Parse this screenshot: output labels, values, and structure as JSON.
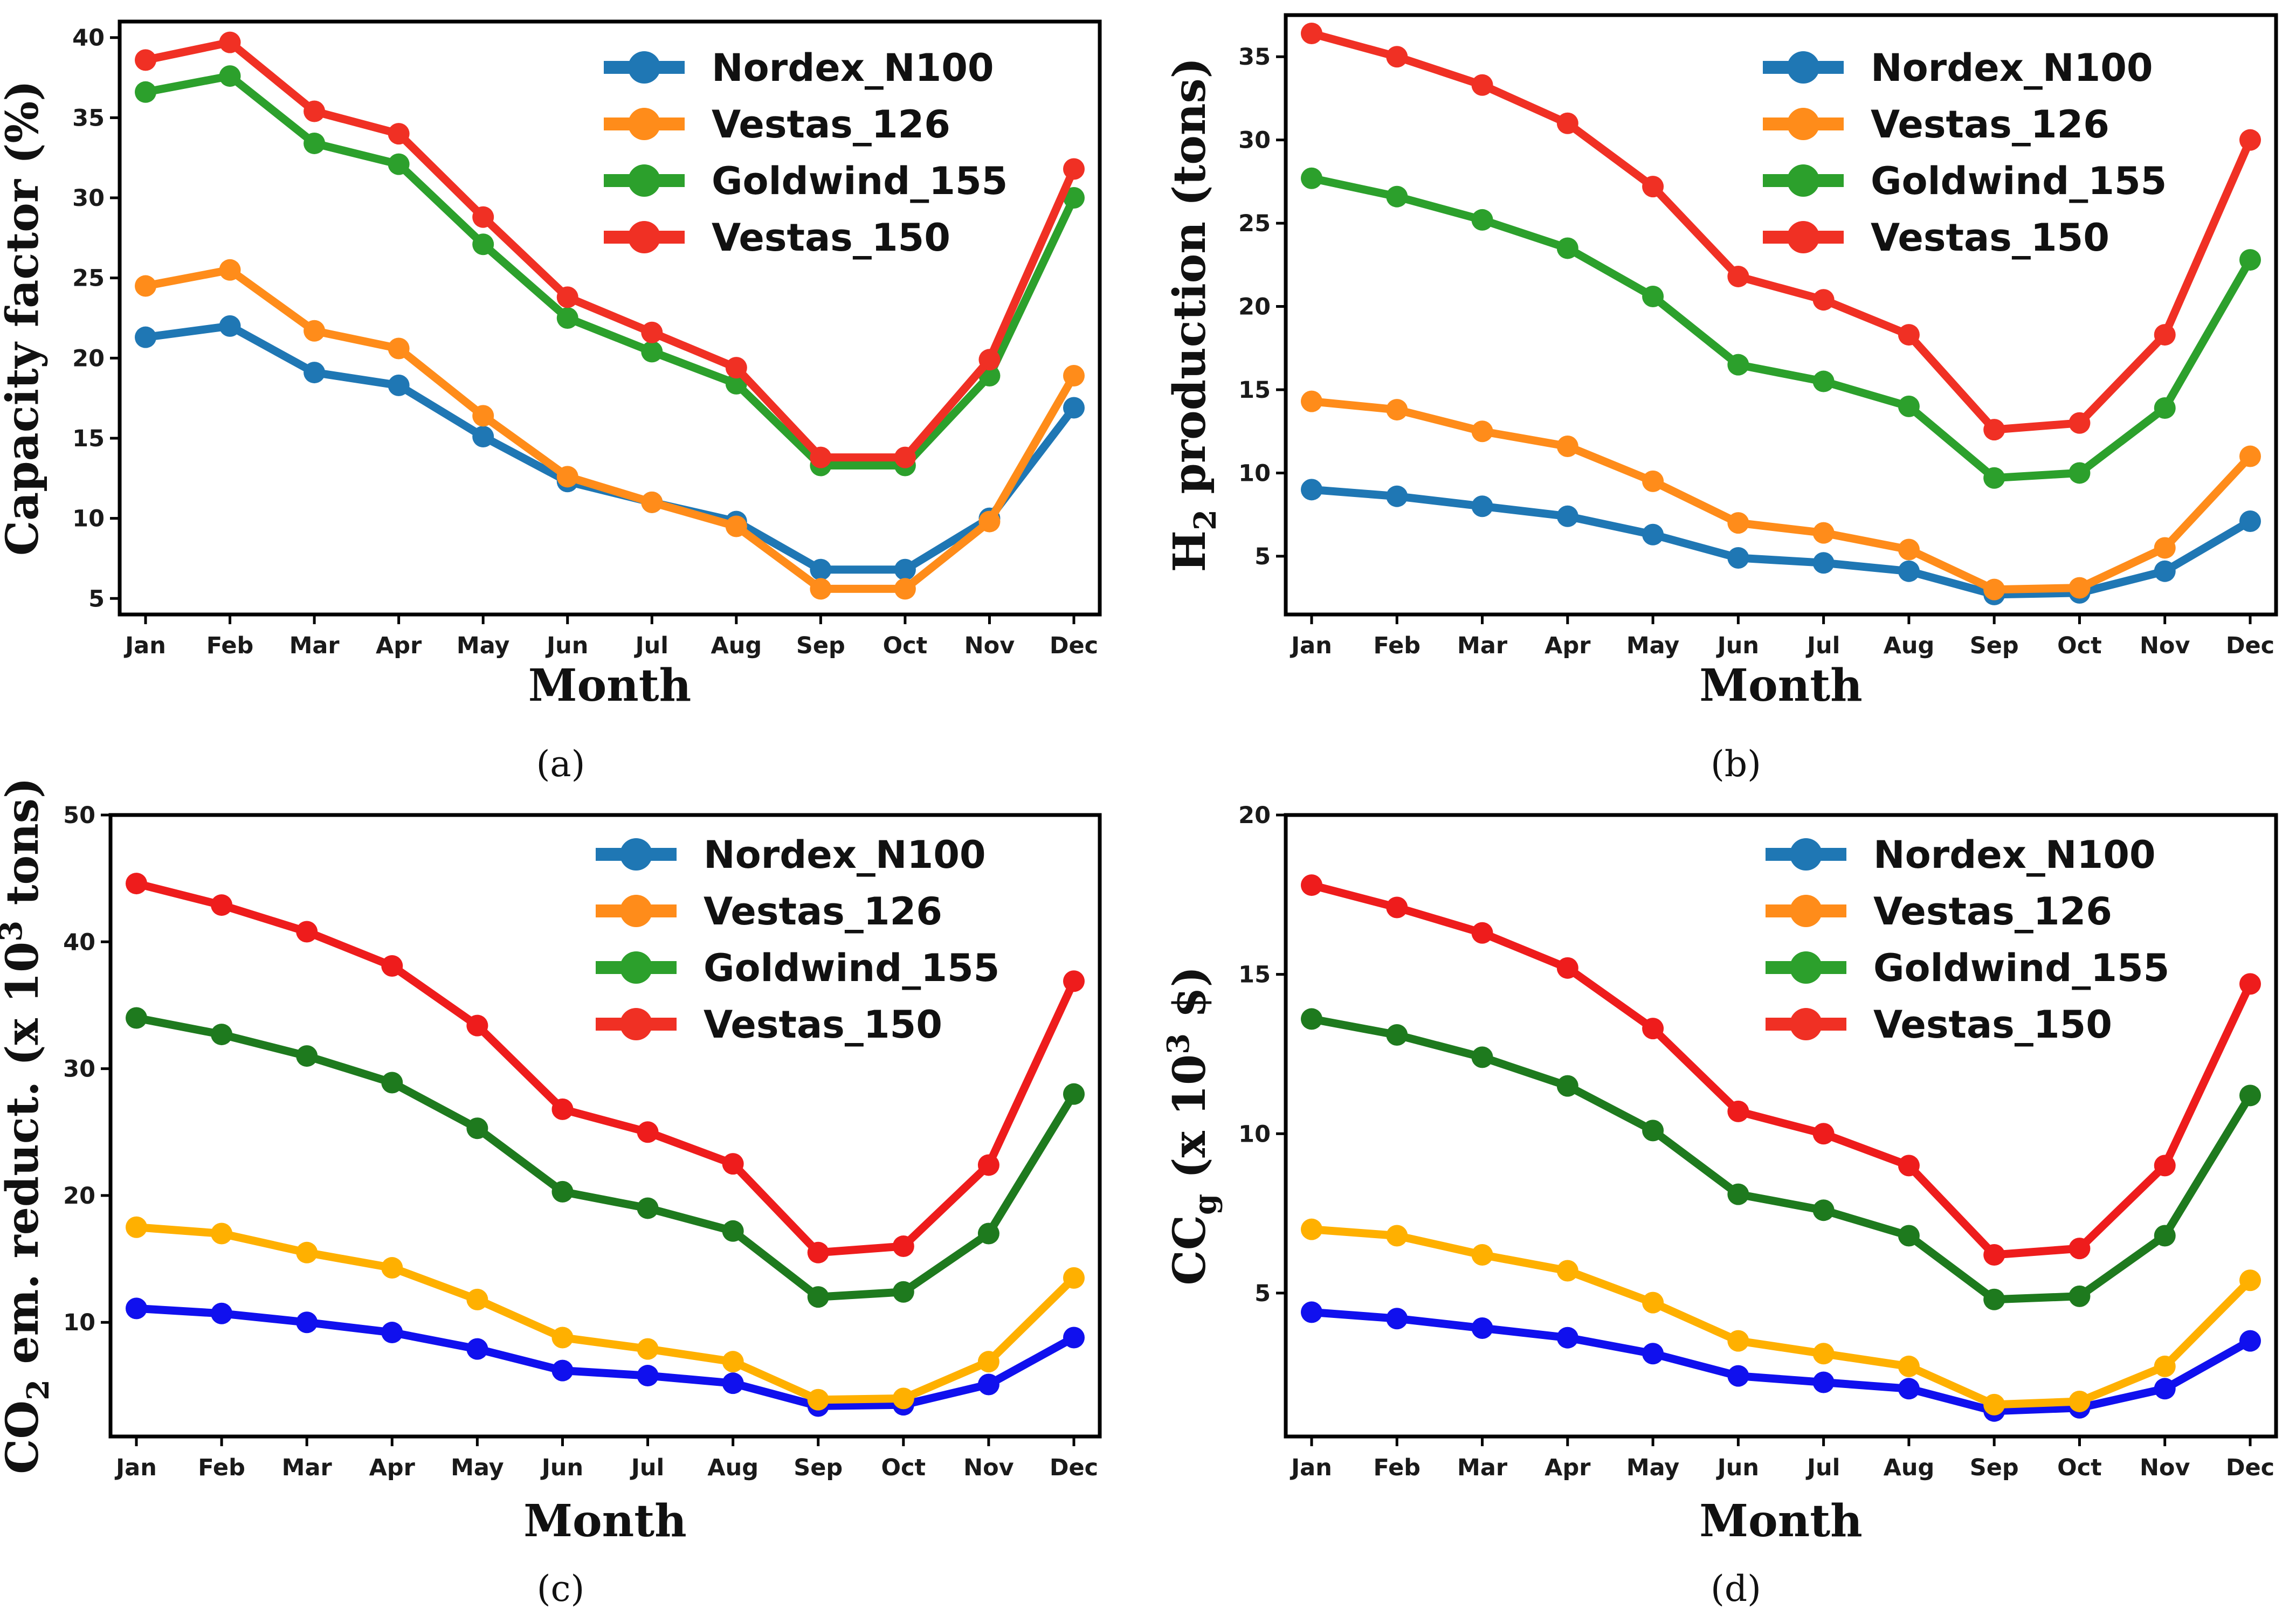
{
  "chart_data": [
    {
      "type": "line",
      "caption": "(a)",
      "categories": [
        "Jan",
        "Feb",
        "Mar",
        "Apr",
        "May",
        "Jun",
        "Jul",
        "Aug",
        "Sep",
        "Oct",
        "Nov",
        "Dec"
      ],
      "xlabel": "Month",
      "ylabel": "Capacity factor (%)",
      "ylim": [
        4,
        41
      ],
      "yticks": [
        5,
        10,
        15,
        20,
        25,
        30,
        35,
        40
      ],
      "legend_position": "top-right",
      "series": [
        {
          "name": "Nordex_N100",
          "color": "#1f77b4",
          "values": [
            21.3,
            22.0,
            19.1,
            18.3,
            15.1,
            12.3,
            11.0,
            9.8,
            6.8,
            6.8,
            10.0,
            16.9
          ]
        },
        {
          "name": "Vestas_126",
          "color": "#ff8c1a",
          "values": [
            24.5,
            25.5,
            21.7,
            20.6,
            16.4,
            12.6,
            11.0,
            9.5,
            5.6,
            5.6,
            9.8,
            18.9
          ]
        },
        {
          "name": "Goldwind_155",
          "color": "#2ca02c",
          "values": [
            36.6,
            37.6,
            33.4,
            32.1,
            27.1,
            22.5,
            20.4,
            18.4,
            13.3,
            13.3,
            18.9,
            30.0
          ]
        },
        {
          "name": "Vestas_150",
          "color": "#f03024",
          "values": [
            38.6,
            39.7,
            35.4,
            34.0,
            28.8,
            23.8,
            21.6,
            19.4,
            13.8,
            13.8,
            19.9,
            31.8
          ]
        }
      ]
    },
    {
      "type": "line",
      "caption": "(b)",
      "categories": [
        "Jan",
        "Feb",
        "Mar",
        "Apr",
        "May",
        "Jun",
        "Jul",
        "Aug",
        "Sep",
        "Oct",
        "Nov",
        "Dec"
      ],
      "xlabel": "Month",
      "ylabel": "H2 production (tons)",
      "ylabel_parts": {
        "before": "H",
        "sub": "2",
        "after": " production (tons)"
      },
      "ylim": [
        1.5,
        37.5
      ],
      "yticks": [
        5,
        10,
        15,
        20,
        25,
        30,
        35
      ],
      "legend_position": "top-right",
      "series": [
        {
          "name": "Nordex_N100",
          "color": "#1f77b4",
          "values": [
            9.0,
            8.6,
            8.0,
            7.4,
            6.3,
            4.9,
            4.6,
            4.1,
            2.7,
            2.8,
            4.1,
            7.1
          ]
        },
        {
          "name": "Vestas_126",
          "color": "#ff8c1a",
          "values": [
            14.3,
            13.8,
            12.5,
            11.6,
            9.5,
            7.0,
            6.4,
            5.4,
            3.0,
            3.1,
            5.5,
            11.0
          ]
        },
        {
          "name": "Goldwind_155",
          "color": "#2ca02c",
          "values": [
            27.7,
            26.6,
            25.2,
            23.5,
            20.6,
            16.5,
            15.5,
            14.0,
            9.7,
            10.0,
            13.9,
            22.8
          ]
        },
        {
          "name": "Vestas_150",
          "color": "#f03024",
          "values": [
            36.4,
            35.0,
            33.3,
            31.0,
            27.2,
            21.8,
            20.4,
            18.3,
            12.6,
            13.0,
            18.3,
            30.0
          ]
        }
      ]
    },
    {
      "type": "line",
      "caption": "(c)",
      "categories": [
        "Jan",
        "Feb",
        "Mar",
        "Apr",
        "May",
        "Jun",
        "Jul",
        "Aug",
        "Sep",
        "Oct",
        "Nov",
        "Dec"
      ],
      "xlabel": "Month",
      "ylabel": "CO2 em. reduct. (x 103 tons)",
      "ylabel_parts": {
        "before": "CO",
        "sub": "2",
        "middle": " em. reduct. (x 10",
        "sup": "3",
        "after": " tons)"
      },
      "ylim": [
        1,
        50
      ],
      "yticks": [
        10,
        20,
        30,
        40,
        50
      ],
      "legend_position": "top-right",
      "series": [
        {
          "name": "Nordex_N100",
          "color": "#1010ee",
          "legend_color": "#1f77b4",
          "values": [
            11.1,
            10.7,
            10.0,
            9.2,
            7.9,
            6.2,
            5.8,
            5.2,
            3.4,
            3.5,
            5.1,
            8.8
          ]
        },
        {
          "name": "Vestas_126",
          "color": "#ffb000",
          "legend_color": "#ff8c1a",
          "values": [
            17.5,
            17.0,
            15.5,
            14.3,
            11.8,
            8.8,
            7.9,
            6.9,
            3.9,
            4.0,
            6.9,
            13.5
          ]
        },
        {
          "name": "Goldwind_155",
          "color": "#1e7a1e",
          "legend_color": "#2ca02c",
          "values": [
            34.0,
            32.7,
            31.0,
            28.9,
            25.3,
            20.3,
            19.0,
            17.2,
            12.0,
            12.4,
            17.0,
            28.0
          ]
        },
        {
          "name": "Vestas_150",
          "color": "#ee1c1c",
          "legend_color": "#f03024",
          "values": [
            44.6,
            42.9,
            40.8,
            38.1,
            33.4,
            26.8,
            25.0,
            22.5,
            15.5,
            16.0,
            22.4,
            36.9
          ]
        }
      ]
    },
    {
      "type": "line",
      "caption": "(d)",
      "categories": [
        "Jan",
        "Feb",
        "Mar",
        "Apr",
        "May",
        "Jun",
        "Jul",
        "Aug",
        "Sep",
        "Oct",
        "Nov",
        "Dec"
      ],
      "xlabel": "Month",
      "ylabel": "CCg (x 103 $)",
      "ylabel_parts": {
        "before": "CC",
        "sub": "g",
        "middle": " (x 10",
        "sup": "3",
        "after": " $)"
      },
      "ylim": [
        0.5,
        20
      ],
      "yticks": [
        5,
        10,
        15,
        20
      ],
      "legend_position": "top-right",
      "series": [
        {
          "name": "Nordex_N100",
          "color": "#1010ee",
          "legend_color": "#1f77b4",
          "values": [
            4.4,
            4.2,
            3.9,
            3.6,
            3.1,
            2.4,
            2.2,
            2.0,
            1.3,
            1.4,
            2.0,
            3.5
          ]
        },
        {
          "name": "Vestas_126",
          "color": "#ffb000",
          "legend_color": "#ff8c1a",
          "values": [
            7.0,
            6.8,
            6.2,
            5.7,
            4.7,
            3.5,
            3.1,
            2.7,
            1.5,
            1.6,
            2.7,
            5.4
          ]
        },
        {
          "name": "Goldwind_155",
          "color": "#1e7a1e",
          "legend_color": "#2ca02c",
          "values": [
            13.6,
            13.1,
            12.4,
            11.5,
            10.1,
            8.1,
            7.6,
            6.8,
            4.8,
            4.9,
            6.8,
            11.2
          ]
        },
        {
          "name": "Vestas_150",
          "color": "#ee1c1c",
          "legend_color": "#f03024",
          "values": [
            17.8,
            17.1,
            16.3,
            15.2,
            13.3,
            10.7,
            10.0,
            9.0,
            6.2,
            6.4,
            9.0,
            14.7
          ]
        }
      ]
    }
  ]
}
